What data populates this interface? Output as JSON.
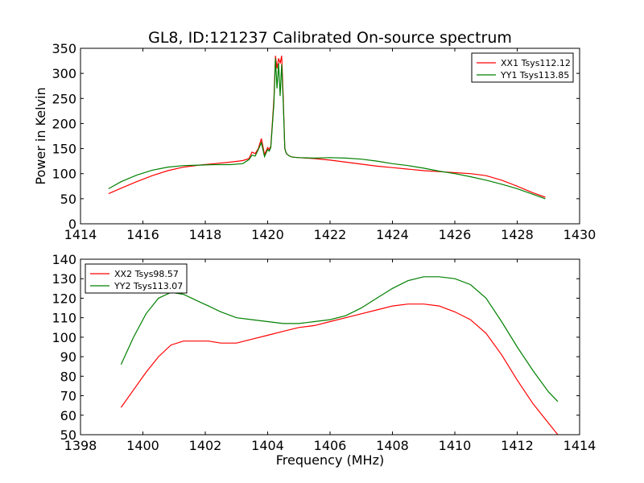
{
  "figure": {
    "title": "GL8, ID:121237 Calibrated On-source spectrum",
    "xlabel": "Frequency (MHz)",
    "ylabel": "Power in Kelvin"
  },
  "chart_data": [
    {
      "type": "line",
      "title": "GL8, ID:121237 Calibrated On-source spectrum",
      "xlabel": "",
      "ylabel": "Power in Kelvin",
      "xlim": [
        1414,
        1430
      ],
      "ylim": [
        0,
        350
      ],
      "xticks": [
        1414,
        1416,
        1418,
        1420,
        1422,
        1424,
        1426,
        1428,
        1430
      ],
      "yticks": [
        0,
        50,
        100,
        150,
        200,
        250,
        300,
        350
      ],
      "legend_position": "top-right",
      "grid": false,
      "series": [
        {
          "name": "XX1 Tsys112.12",
          "color": "#ff0000",
          "x": [
            1414.9,
            1415.3,
            1415.8,
            1416.3,
            1416.8,
            1417.3,
            1417.8,
            1418.3,
            1418.8,
            1419.2,
            1419.4,
            1419.5,
            1419.6,
            1419.7,
            1419.8,
            1419.9,
            1420.0,
            1420.05,
            1420.1,
            1420.15,
            1420.2,
            1420.25,
            1420.3,
            1420.35,
            1420.4,
            1420.45,
            1420.5,
            1420.55,
            1420.6,
            1420.7,
            1420.8,
            1421.0,
            1421.5,
            1422.0,
            1422.5,
            1423.0,
            1423.5,
            1424.0,
            1424.5,
            1425.0,
            1425.5,
            1426.0,
            1426.5,
            1427.0,
            1427.5,
            1428.0,
            1428.5,
            1428.9
          ],
          "y": [
            60,
            71,
            84,
            96,
            106,
            113,
            117,
            120,
            123,
            126,
            130,
            143,
            140,
            150,
            170,
            138,
            152,
            148,
            155,
            200,
            250,
            335,
            310,
            330,
            320,
            335,
            250,
            150,
            140,
            135,
            133,
            132,
            130,
            127,
            123,
            119,
            115,
            112,
            109,
            106,
            104,
            102,
            100,
            96,
            87,
            75,
            62,
            53
          ]
        },
        {
          "name": "YY1 Tsys113.85",
          "color": "#008000",
          "x": [
            1414.9,
            1415.3,
            1415.8,
            1416.3,
            1416.8,
            1417.3,
            1417.8,
            1418.3,
            1418.8,
            1419.2,
            1419.4,
            1419.5,
            1419.6,
            1419.7,
            1419.8,
            1419.9,
            1420.0,
            1420.05,
            1420.1,
            1420.15,
            1420.2,
            1420.25,
            1420.3,
            1420.35,
            1420.4,
            1420.45,
            1420.5,
            1420.55,
            1420.6,
            1420.7,
            1420.8,
            1421.0,
            1421.5,
            1422.0,
            1422.5,
            1423.0,
            1423.5,
            1424.0,
            1424.5,
            1425.0,
            1425.5,
            1426.0,
            1426.5,
            1427.0,
            1427.5,
            1428.0,
            1428.5,
            1428.9
          ],
          "y": [
            70,
            84,
            97,
            107,
            113,
            116,
            117,
            118,
            118,
            120,
            128,
            137,
            135,
            148,
            162,
            134,
            148,
            145,
            152,
            195,
            240,
            330,
            270,
            320,
            255,
            318,
            240,
            150,
            140,
            135,
            133,
            132,
            131,
            132,
            131,
            129,
            125,
            120,
            116,
            111,
            105,
            100,
            94,
            87,
            79,
            70,
            59,
            50
          ]
        }
      ]
    },
    {
      "type": "line",
      "title": "",
      "xlabel": "Frequency (MHz)",
      "ylabel": "",
      "xlim": [
        1398,
        1414
      ],
      "ylim": [
        50,
        140
      ],
      "xticks": [
        1398,
        1400,
        1402,
        1404,
        1406,
        1408,
        1410,
        1412,
        1414
      ],
      "yticks": [
        50,
        60,
        70,
        80,
        90,
        100,
        110,
        120,
        130,
        140
      ],
      "legend_position": "top-left",
      "grid": false,
      "series": [
        {
          "name": "XX2 Tsys98.57",
          "color": "#ff0000",
          "x": [
            1399.3,
            1399.7,
            1400.1,
            1400.5,
            1400.9,
            1401.3,
            1401.7,
            1402.1,
            1402.5,
            1403.0,
            1403.5,
            1404.0,
            1404.5,
            1405.0,
            1405.5,
            1406.0,
            1406.5,
            1407.0,
            1407.5,
            1408.0,
            1408.5,
            1409.0,
            1409.5,
            1410.0,
            1410.5,
            1411.0,
            1411.5,
            1412.0,
            1412.5,
            1413.0,
            1413.3
          ],
          "y": [
            64,
            73,
            82,
            90,
            96,
            98,
            98,
            98,
            97,
            97,
            99,
            101,
            103,
            105,
            106,
            108,
            110,
            112,
            114,
            116,
            117,
            117,
            116,
            113,
            109,
            102,
            91,
            78,
            66,
            56,
            50
          ]
        },
        {
          "name": "YY2 Tsys113.07",
          "color": "#008000",
          "x": [
            1399.3,
            1399.7,
            1400.1,
            1400.5,
            1400.9,
            1401.3,
            1401.7,
            1402.1,
            1402.5,
            1403.0,
            1403.5,
            1404.0,
            1404.5,
            1405.0,
            1405.5,
            1406.0,
            1406.5,
            1407.0,
            1407.5,
            1408.0,
            1408.5,
            1409.0,
            1409.5,
            1410.0,
            1410.5,
            1411.0,
            1411.5,
            1412.0,
            1412.5,
            1413.0,
            1413.3
          ],
          "y": [
            86,
            100,
            112,
            120,
            123,
            122,
            119,
            116,
            113,
            110,
            109,
            108,
            107,
            107,
            108,
            109,
            111,
            115,
            120,
            125,
            129,
            131,
            131,
            130,
            127,
            120,
            108,
            95,
            83,
            72,
            67
          ]
        }
      ]
    }
  ]
}
